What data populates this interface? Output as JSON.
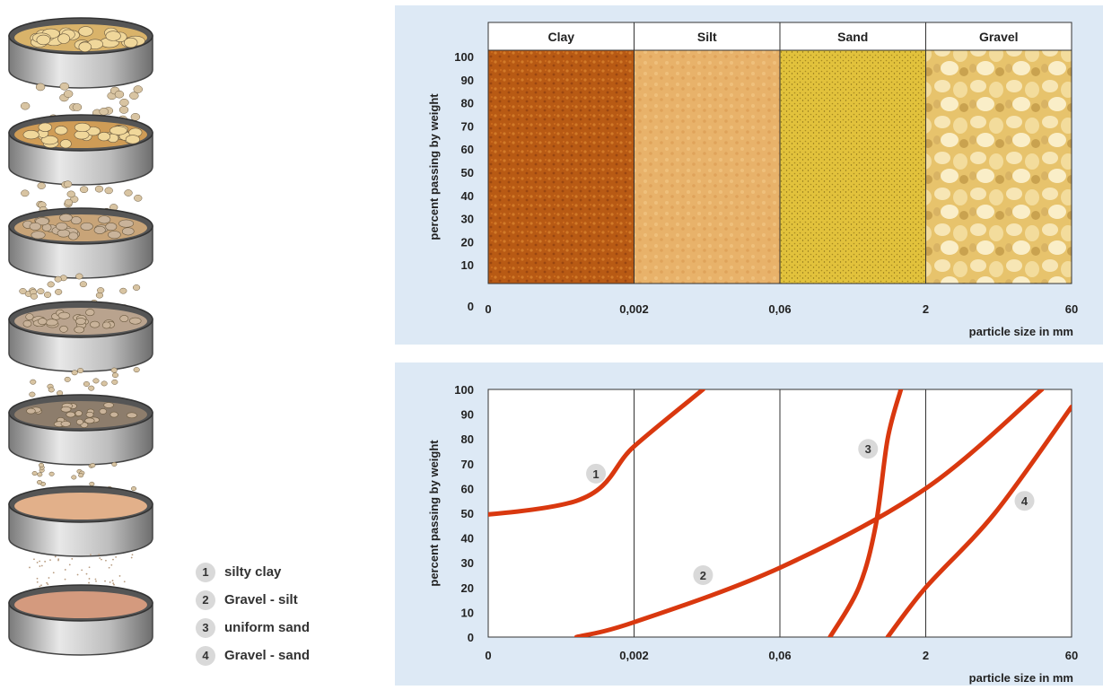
{
  "legend": [
    {
      "num": "1",
      "label": "silty clay"
    },
    {
      "num": "2",
      "label": "Gravel - silt"
    },
    {
      "num": "3",
      "label": "uniform sand"
    },
    {
      "num": "4",
      "label": "Gravel - sand"
    }
  ],
  "colors": {
    "panel_bg": "#dde9f5",
    "curve": "#d9380f",
    "clay": "#b85a14",
    "silt": "#e8b26a",
    "sand": "#e2c23c",
    "gravel": "#f0d48a"
  },
  "chart_data": [
    {
      "type": "table",
      "categories": [
        "Clay",
        "Silt",
        "Sand",
        "Gravel"
      ],
      "x_ticks": [
        "0",
        "0,002",
        "0,06",
        "2",
        "60"
      ],
      "y_ticks": [
        "0",
        "10",
        "20",
        "30",
        "40",
        "50",
        "60",
        "70",
        "80",
        "90",
        "100"
      ],
      "xlabel": "particle size in mm",
      "ylabel": "percent passing by weight",
      "ylim": [
        0,
        100
      ]
    },
    {
      "type": "line",
      "x_ticks": [
        "0",
        "0,002",
        "0,06",
        "2",
        "60"
      ],
      "y_ticks": [
        "0",
        "10",
        "20",
        "30",
        "40",
        "50",
        "60",
        "70",
        "80",
        "90",
        "100"
      ],
      "xlabel": "particle size in mm",
      "ylabel": "percent passing by weight",
      "ylim": [
        0,
        100
      ],
      "x_scale_note": "logarithmic grain-size axis, each tick one class boundary",
      "series": [
        {
          "name": "1",
          "points": [
            [
              1e-05,
              47
            ],
            [
              0.0005,
              55
            ],
            [
              0.002,
              77
            ],
            [
              0.01,
              100
            ]
          ]
        },
        {
          "name": "2",
          "points": [
            [
              0.0005,
              0
            ],
            [
              0.002,
              6
            ],
            [
              0.06,
              28
            ],
            [
              2,
              60
            ],
            [
              30,
              100
            ]
          ]
        },
        {
          "name": "3",
          "points": [
            [
              0.2,
              0
            ],
            [
              0.4,
              20
            ],
            [
              0.6,
              45
            ],
            [
              0.8,
              80
            ],
            [
              1.1,
              100
            ]
          ]
        },
        {
          "name": "4",
          "points": [
            [
              0.8,
              0
            ],
            [
              2,
              20
            ],
            [
              10,
              50
            ],
            [
              60,
              93
            ]
          ]
        }
      ],
      "labels": [
        {
          "num": "1",
          "x": 0.0008,
          "y": 66
        },
        {
          "num": "2",
          "x": 0.01,
          "y": 25
        },
        {
          "num": "3",
          "x": 0.5,
          "y": 76
        },
        {
          "num": "4",
          "x": 20,
          "y": 55
        }
      ]
    }
  ]
}
